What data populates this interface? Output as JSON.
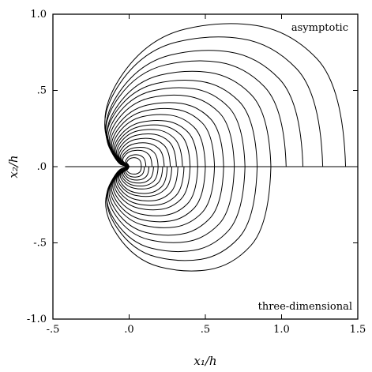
{
  "chart_data": {
    "type": "line",
    "title": "",
    "xlabel": "x₁/h",
    "ylabel": "x₂/h",
    "xlim": [
      -0.5,
      1.5
    ],
    "ylim": [
      -1.0,
      1.0
    ],
    "xticks": [
      -0.5,
      0.0,
      0.5,
      1.0,
      1.5
    ],
    "xtick_labels": [
      "-.5",
      ".0",
      ".5",
      "1.0",
      "1.5"
    ],
    "yticks": [
      -1.0,
      -0.5,
      0.0,
      0.5,
      1.0
    ],
    "ytick_labels": [
      "-1.0",
      "-.5",
      ".0",
      ".5",
      "1.0"
    ],
    "grid": false,
    "annotations": [
      {
        "text": "asymptotic",
        "position": "top-right"
      },
      {
        "text": "three-dimensional",
        "position": "bottom-right"
      }
    ],
    "baseline": {
      "y": 0.0,
      "x_from": -0.42,
      "x_to": 1.47
    },
    "upper_half": {
      "panel": "asymptotic",
      "line_color": "#000000",
      "contour_right_intercepts_x1": [
        0.08,
        0.11,
        0.15,
        0.19,
        0.23,
        0.27,
        0.31,
        0.35,
        0.4,
        0.45,
        0.5,
        0.56,
        0.62,
        0.69,
        0.76,
        0.84,
        0.93,
        1.03,
        1.14,
        1.27,
        1.42
      ],
      "contour_top_x2": [
        0.06,
        0.08,
        0.11,
        0.13,
        0.16,
        0.19,
        0.22,
        0.25,
        0.28,
        0.31,
        0.35,
        0.39,
        0.43,
        0.48,
        0.53,
        0.58,
        0.64,
        0.71,
        0.78,
        0.87,
        0.96
      ],
      "contour_left_extent_x1": [
        -0.02,
        -0.03,
        -0.05,
        -0.06,
        -0.07,
        -0.08,
        -0.09,
        -0.1,
        -0.11,
        -0.12,
        -0.13,
        -0.14,
        -0.15,
        -0.16,
        -0.17,
        -0.18,
        -0.18,
        -0.19,
        -0.19,
        -0.2,
        -0.2
      ]
    },
    "lower_half": {
      "panel": "three-dimensional",
      "line_color": "#000000",
      "contour_right_intercepts_x1": [
        0.08,
        0.1,
        0.13,
        0.16,
        0.19,
        0.22,
        0.25,
        0.28,
        0.32,
        0.36,
        0.4,
        0.45,
        0.5,
        0.56,
        0.62,
        0.69,
        0.76,
        0.84,
        0.93
      ],
      "contour_bottom_x2": [
        -0.05,
        -0.07,
        -0.09,
        -0.11,
        -0.13,
        -0.15,
        -0.18,
        -0.2,
        -0.23,
        -0.26,
        -0.29,
        -0.33,
        -0.37,
        -0.41,
        -0.46,
        -0.51,
        -0.57,
        -0.63,
        -0.7
      ],
      "contour_left_extent_x1": [
        -0.02,
        -0.03,
        -0.04,
        -0.05,
        -0.06,
        -0.07,
        -0.08,
        -0.09,
        -0.1,
        -0.11,
        -0.12,
        -0.13,
        -0.14,
        -0.15,
        -0.16,
        -0.17,
        -0.18,
        -0.18,
        -0.19
      ]
    }
  }
}
